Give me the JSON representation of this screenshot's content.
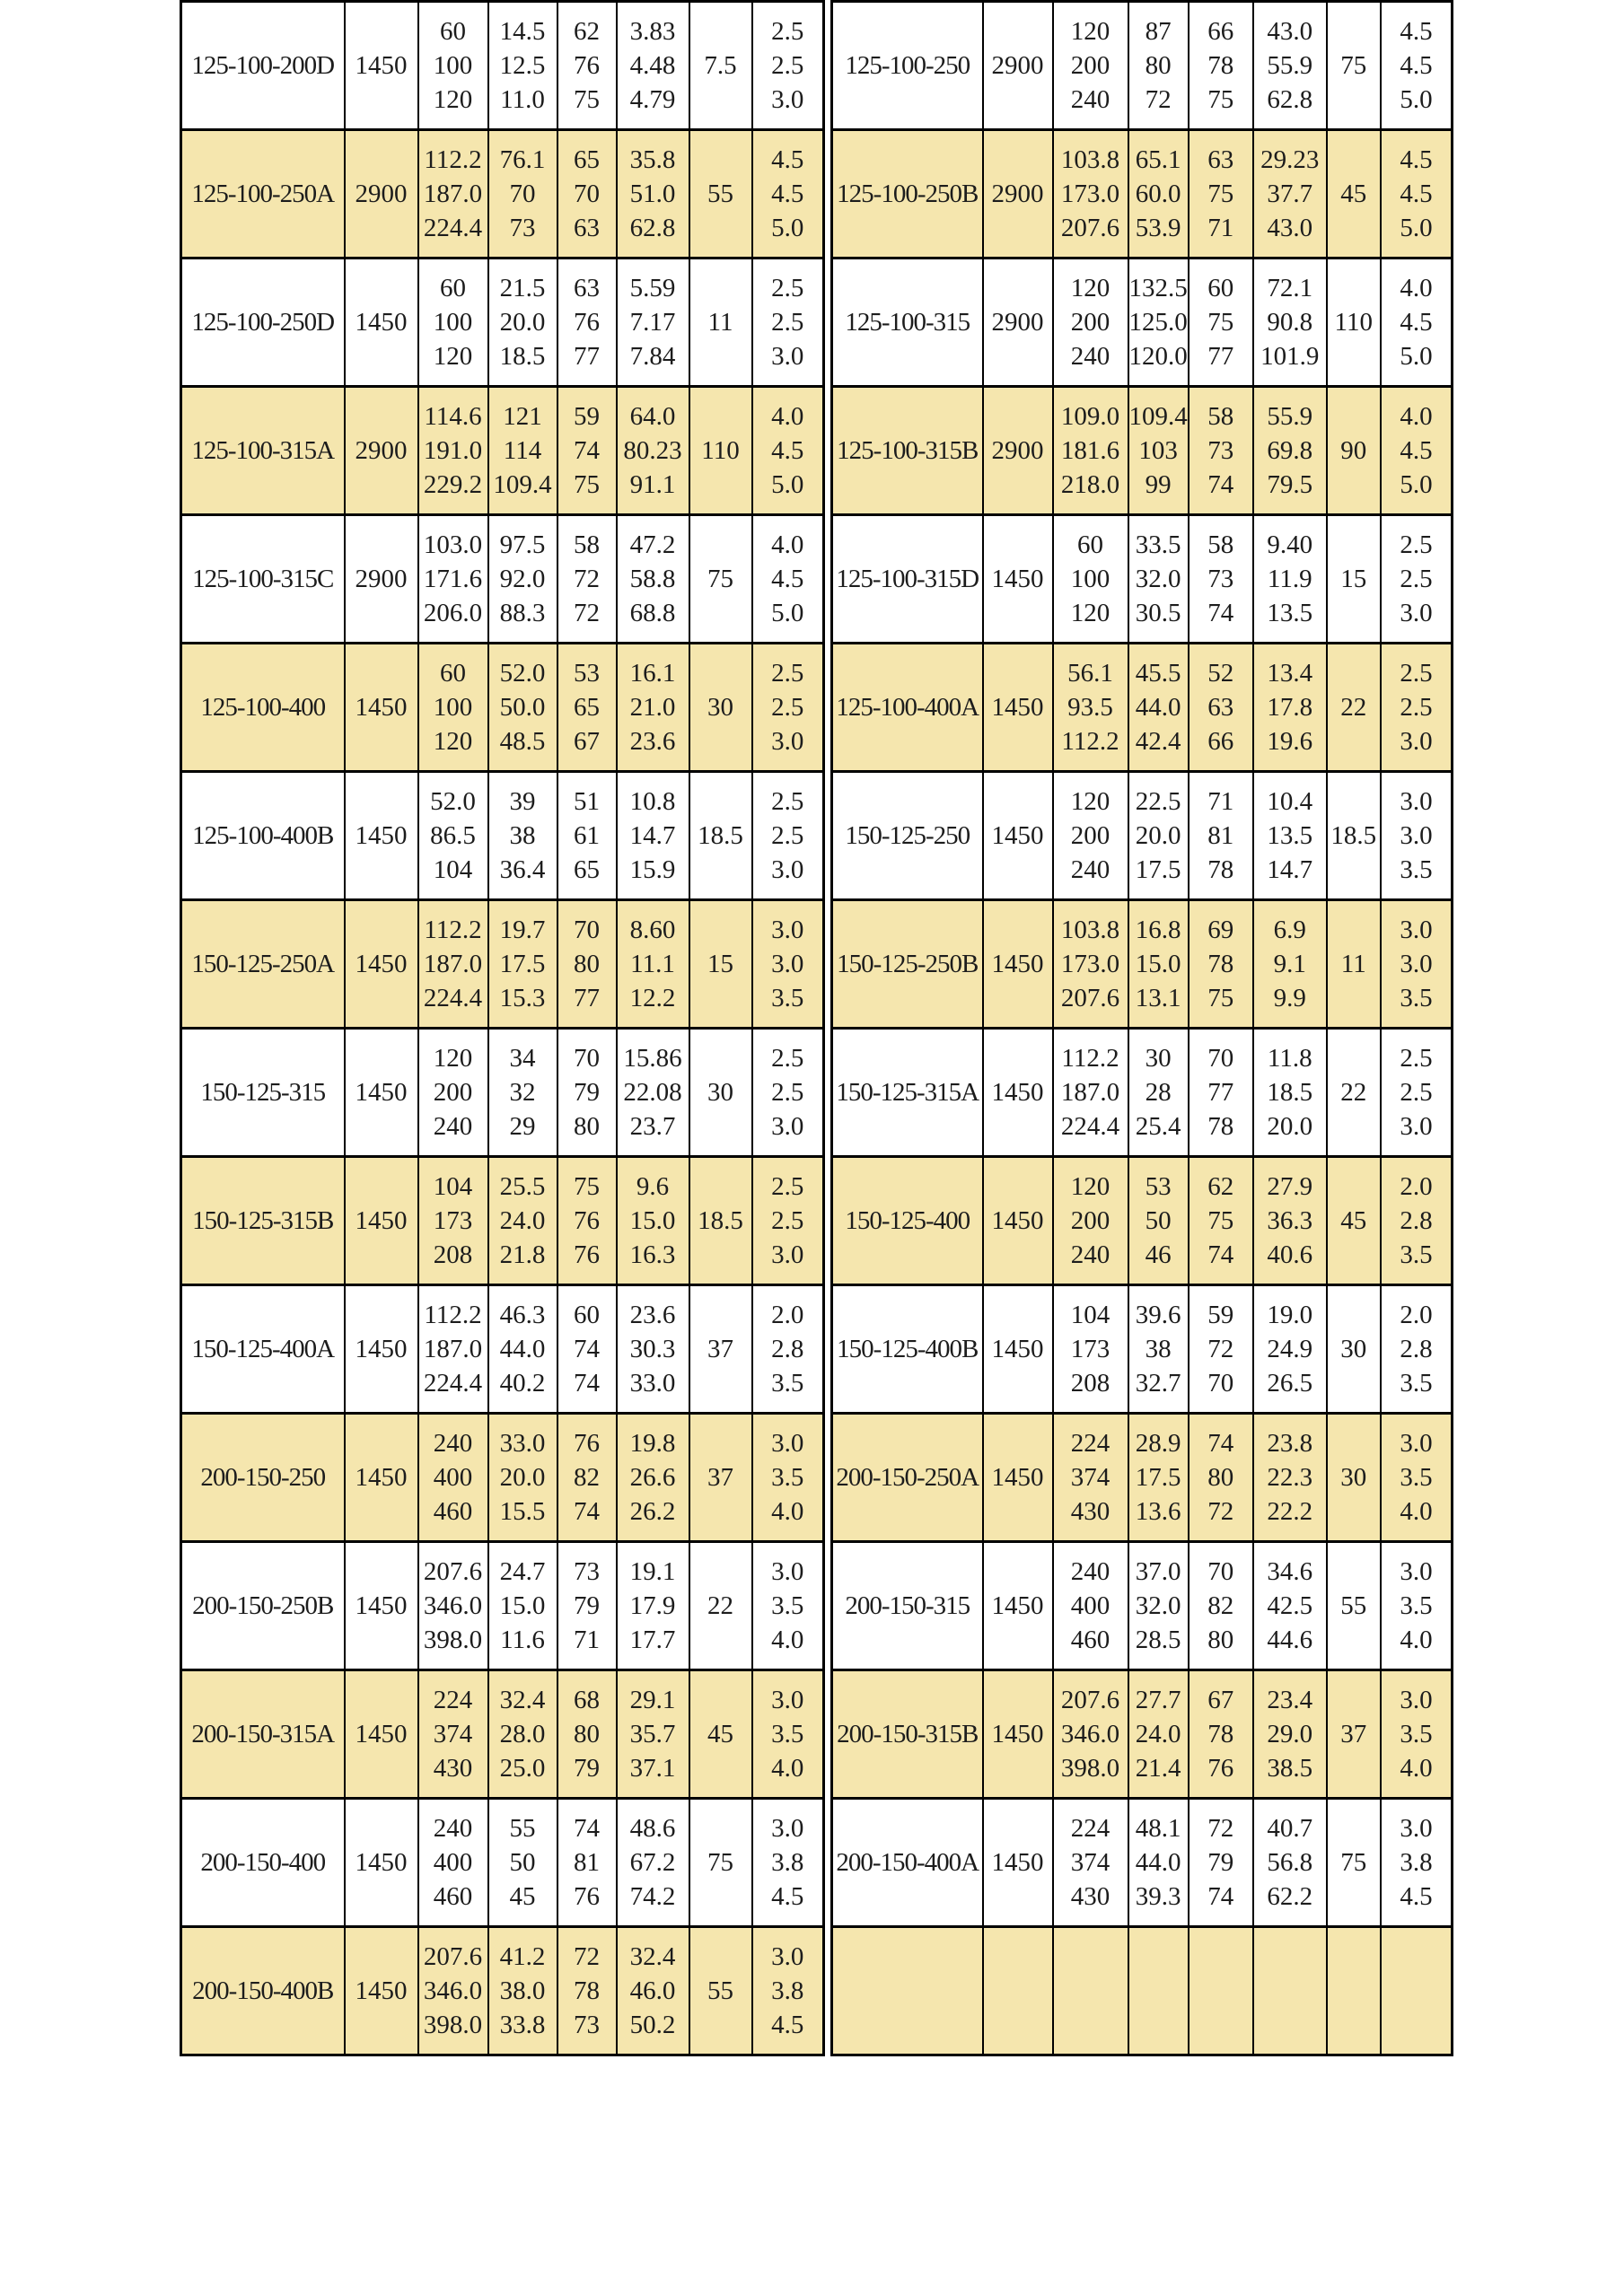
{
  "colors": {
    "stripe": "#f5e6ae",
    "grid": "#000000",
    "text": "#1c1c1c",
    "page_background": "#ffffff"
  },
  "table": {
    "rows": [
      {
        "shade": "white",
        "left": {
          "model": "125-100-200D",
          "speed": "1450",
          "flow": [
            "60",
            "100",
            "120"
          ],
          "head": [
            "14.5",
            "12.5",
            "11.0"
          ],
          "eff": [
            "62",
            "76",
            "75"
          ],
          "power": [
            "3.83",
            "4.48",
            "4.79"
          ],
          "rated": "7.5",
          "npsh": [
            "2.5",
            "2.5",
            "3.0"
          ]
        },
        "right": {
          "model": "125-100-250",
          "speed": "2900",
          "flow": [
            "120",
            "200",
            "240"
          ],
          "head": [
            "87",
            "80",
            "72"
          ],
          "eff": [
            "66",
            "78",
            "75"
          ],
          "power": [
            "43.0",
            "55.9",
            "62.8"
          ],
          "rated": "75",
          "npsh": [
            "4.5",
            "4.5",
            "5.0"
          ]
        }
      },
      {
        "shade": "cream",
        "left": {
          "model": "125-100-250A",
          "speed": "2900",
          "flow": [
            "112.2",
            "187.0",
            "224.4"
          ],
          "head": [
            "76.1",
            "70",
            "73"
          ],
          "eff": [
            "65",
            "70",
            "63"
          ],
          "power": [
            "35.8",
            "51.0",
            "62.8"
          ],
          "rated": "55",
          "npsh": [
            "4.5",
            "4.5",
            "5.0"
          ]
        },
        "right": {
          "model": "125-100-250B",
          "speed": "2900",
          "flow": [
            "103.8",
            "173.0",
            "207.6"
          ],
          "head": [
            "65.1",
            "60.0",
            "53.9"
          ],
          "eff": [
            "63",
            "75",
            "71"
          ],
          "power": [
            "29.23",
            "37.7",
            "43.0"
          ],
          "rated": "45",
          "npsh": [
            "4.5",
            "4.5",
            "5.0"
          ]
        }
      },
      {
        "shade": "white",
        "left": {
          "model": "125-100-250D",
          "speed": "1450",
          "flow": [
            "60",
            "100",
            "120"
          ],
          "head": [
            "21.5",
            "20.0",
            "18.5"
          ],
          "eff": [
            "63",
            "76",
            "77"
          ],
          "power": [
            "5.59",
            "7.17",
            "7.84"
          ],
          "rated": "11",
          "npsh": [
            "2.5",
            "2.5",
            "3.0"
          ]
        },
        "right": {
          "model": "125-100-315",
          "speed": "2900",
          "flow": [
            "120",
            "200",
            "240"
          ],
          "head": [
            "132.5",
            "125.0",
            "120.0"
          ],
          "eff": [
            "60",
            "75",
            "77"
          ],
          "power": [
            "72.1",
            "90.8",
            "101.9"
          ],
          "rated": "110",
          "npsh": [
            "4.0",
            "4.5",
            "5.0"
          ]
        }
      },
      {
        "shade": "cream",
        "left": {
          "model": "125-100-315A",
          "speed": "2900",
          "flow": [
            "114.6",
            "191.0",
            "229.2"
          ],
          "head": [
            "121",
            "114",
            "109.4"
          ],
          "eff": [
            "59",
            "74",
            "75"
          ],
          "power": [
            "64.0",
            "80.23",
            "91.1"
          ],
          "rated": "110",
          "npsh": [
            "4.0",
            "4.5",
            "5.0"
          ]
        },
        "right": {
          "model": "125-100-315B",
          "speed": "2900",
          "flow": [
            "109.0",
            "181.6",
            "218.0"
          ],
          "head": [
            "109.4",
            "103",
            "99"
          ],
          "eff": [
            "58",
            "73",
            "74"
          ],
          "power": [
            "55.9",
            "69.8",
            "79.5"
          ],
          "rated": "90",
          "npsh": [
            "4.0",
            "4.5",
            "5.0"
          ]
        }
      },
      {
        "shade": "white",
        "left": {
          "model": "125-100-315C",
          "speed": "2900",
          "flow": [
            "103.0",
            "171.6",
            "206.0"
          ],
          "head": [
            "97.5",
            "92.0",
            "88.3"
          ],
          "eff": [
            "58",
            "72",
            "72"
          ],
          "power": [
            "47.2",
            "58.8",
            "68.8"
          ],
          "rated": "75",
          "npsh": [
            "4.0",
            "4.5",
            "5.0"
          ]
        },
        "right": {
          "model": "125-100-315D",
          "speed": "1450",
          "flow": [
            "60",
            "100",
            "120"
          ],
          "head": [
            "33.5",
            "32.0",
            "30.5"
          ],
          "eff": [
            "58",
            "73",
            "74"
          ],
          "power": [
            "9.40",
            "11.9",
            "13.5"
          ],
          "rated": "15",
          "npsh": [
            "2.5",
            "2.5",
            "3.0"
          ]
        }
      },
      {
        "shade": "cream",
        "left": {
          "model": "125-100-400",
          "speed": "1450",
          "flow": [
            "60",
            "100",
            "120"
          ],
          "head": [
            "52.0",
            "50.0",
            "48.5"
          ],
          "eff": [
            "53",
            "65",
            "67"
          ],
          "power": [
            "16.1",
            "21.0",
            "23.6"
          ],
          "rated": "30",
          "npsh": [
            "2.5",
            "2.5",
            "3.0"
          ]
        },
        "right": {
          "model": "125-100-400A",
          "speed": "1450",
          "flow": [
            "56.1",
            "93.5",
            "112.2"
          ],
          "head": [
            "45.5",
            "44.0",
            "42.4"
          ],
          "eff": [
            "52",
            "63",
            "66"
          ],
          "power": [
            "13.4",
            "17.8",
            "19.6"
          ],
          "rated": "22",
          "npsh": [
            "2.5",
            "2.5",
            "3.0"
          ]
        }
      },
      {
        "shade": "white",
        "left": {
          "model": "125-100-400B",
          "speed": "1450",
          "flow": [
            "52.0",
            "86.5",
            "104"
          ],
          "head": [
            "39",
            "38",
            "36.4"
          ],
          "eff": [
            "51",
            "61",
            "65"
          ],
          "power": [
            "10.8",
            "14.7",
            "15.9"
          ],
          "rated": "18.5",
          "npsh": [
            "2.5",
            "2.5",
            "3.0"
          ]
        },
        "right": {
          "model": "150-125-250",
          "speed": "1450",
          "flow": [
            "120",
            "200",
            "240"
          ],
          "head": [
            "22.5",
            "20.0",
            "17.5"
          ],
          "eff": [
            "71",
            "81",
            "78"
          ],
          "power": [
            "10.4",
            "13.5",
            "14.7"
          ],
          "rated": "18.5",
          "npsh": [
            "3.0",
            "3.0",
            "3.5"
          ]
        }
      },
      {
        "shade": "cream",
        "left": {
          "model": "150-125-250A",
          "speed": "1450",
          "flow": [
            "112.2",
            "187.0",
            "224.4"
          ],
          "head": [
            "19.7",
            "17.5",
            "15.3"
          ],
          "eff": [
            "70",
            "80",
            "77"
          ],
          "power": [
            "8.60",
            "11.1",
            "12.2"
          ],
          "rated": "15",
          "npsh": [
            "3.0",
            "3.0",
            "3.5"
          ]
        },
        "right": {
          "model": "150-125-250B",
          "speed": "1450",
          "flow": [
            "103.8",
            "173.0",
            "207.6"
          ],
          "head": [
            "16.8",
            "15.0",
            "13.1"
          ],
          "eff": [
            "69",
            "78",
            "75"
          ],
          "power": [
            "6.9",
            "9.1",
            "9.9"
          ],
          "rated": "11",
          "npsh": [
            "3.0",
            "3.0",
            "3.5"
          ]
        }
      },
      {
        "shade": "white",
        "left": {
          "model": "150-125-315",
          "speed": "1450",
          "flow": [
            "120",
            "200",
            "240"
          ],
          "head": [
            "34",
            "32",
            "29"
          ],
          "eff": [
            "70",
            "79",
            "80"
          ],
          "power": [
            "15.86",
            "22.08",
            "23.7"
          ],
          "rated": "30",
          "npsh": [
            "2.5",
            "2.5",
            "3.0"
          ]
        },
        "right": {
          "model": "150-125-315A",
          "speed": "1450",
          "flow": [
            "112.2",
            "187.0",
            "224.4"
          ],
          "head": [
            "30",
            "28",
            "25.4"
          ],
          "eff": [
            "70",
            "77",
            "78"
          ],
          "power": [
            "11.8",
            "18.5",
            "20.0"
          ],
          "rated": "22",
          "npsh": [
            "2.5",
            "2.5",
            "3.0"
          ]
        }
      },
      {
        "shade": "cream",
        "left": {
          "model": "150-125-315B",
          "speed": "1450",
          "flow": [
            "104",
            "173",
            "208"
          ],
          "head": [
            "25.5",
            "24.0",
            "21.8"
          ],
          "eff": [
            "75",
            "76",
            "76"
          ],
          "power": [
            "9.6",
            "15.0",
            "16.3"
          ],
          "rated": "18.5",
          "npsh": [
            "2.5",
            "2.5",
            "3.0"
          ]
        },
        "right": {
          "model": "150-125-400",
          "speed": "1450",
          "flow": [
            "120",
            "200",
            "240"
          ],
          "head": [
            "53",
            "50",
            "46"
          ],
          "eff": [
            "62",
            "75",
            "74"
          ],
          "power": [
            "27.9",
            "36.3",
            "40.6"
          ],
          "rated": "45",
          "npsh": [
            "2.0",
            "2.8",
            "3.5"
          ]
        }
      },
      {
        "shade": "white",
        "left": {
          "model": "150-125-400A",
          "speed": "1450",
          "flow": [
            "112.2",
            "187.0",
            "224.4"
          ],
          "head": [
            "46.3",
            "44.0",
            "40.2"
          ],
          "eff": [
            "60",
            "74",
            "74"
          ],
          "power": [
            "23.6",
            "30.3",
            "33.0"
          ],
          "rated": "37",
          "npsh": [
            "2.0",
            "2.8",
            "3.5"
          ]
        },
        "right": {
          "model": "150-125-400B",
          "speed": "1450",
          "flow": [
            "104",
            "173",
            "208"
          ],
          "head": [
            "39.6",
            "38",
            "32.7"
          ],
          "eff": [
            "59",
            "72",
            "70"
          ],
          "power": [
            "19.0",
            "24.9",
            "26.5"
          ],
          "rated": "30",
          "npsh": [
            "2.0",
            "2.8",
            "3.5"
          ]
        }
      },
      {
        "shade": "cream",
        "left": {
          "model": "200-150-250",
          "speed": "1450",
          "flow": [
            "240",
            "400",
            "460"
          ],
          "head": [
            "33.0",
            "20.0",
            "15.5"
          ],
          "eff": [
            "76",
            "82",
            "74"
          ],
          "power": [
            "19.8",
            "26.6",
            "26.2"
          ],
          "rated": "37",
          "npsh": [
            "3.0",
            "3.5",
            "4.0"
          ]
        },
        "right": {
          "model": "200-150-250A",
          "speed": "1450",
          "flow": [
            "224",
            "374",
            "430"
          ],
          "head": [
            "28.9",
            "17.5",
            "13.6"
          ],
          "eff": [
            "74",
            "80",
            "72"
          ],
          "power": [
            "23.8",
            "22.3",
            "22.2"
          ],
          "rated": "30",
          "npsh": [
            "3.0",
            "3.5",
            "4.0"
          ]
        }
      },
      {
        "shade": "white",
        "left": {
          "model": "200-150-250B",
          "speed": "1450",
          "flow": [
            "207.6",
            "346.0",
            "398.0"
          ],
          "head": [
            "24.7",
            "15.0",
            "11.6"
          ],
          "eff": [
            "73",
            "79",
            "71"
          ],
          "power": [
            "19.1",
            "17.9",
            "17.7"
          ],
          "rated": "22",
          "npsh": [
            "3.0",
            "3.5",
            "4.0"
          ]
        },
        "right": {
          "model": "200-150-315",
          "speed": "1450",
          "flow": [
            "240",
            "400",
            "460"
          ],
          "head": [
            "37.0",
            "32.0",
            "28.5"
          ],
          "eff": [
            "70",
            "82",
            "80"
          ],
          "power": [
            "34.6",
            "42.5",
            "44.6"
          ],
          "rated": "55",
          "npsh": [
            "3.0",
            "3.5",
            "4.0"
          ]
        }
      },
      {
        "shade": "cream",
        "left": {
          "model": "200-150-315A",
          "speed": "1450",
          "flow": [
            "224",
            "374",
            "430"
          ],
          "head": [
            "32.4",
            "28.0",
            "25.0"
          ],
          "eff": [
            "68",
            "80",
            "79"
          ],
          "power": [
            "29.1",
            "35.7",
            "37.1"
          ],
          "rated": "45",
          "npsh": [
            "3.0",
            "3.5",
            "4.0"
          ]
        },
        "right": {
          "model": "200-150-315B",
          "speed": "1450",
          "flow": [
            "207.6",
            "346.0",
            "398.0"
          ],
          "head": [
            "27.7",
            "24.0",
            "21.4"
          ],
          "eff": [
            "67",
            "78",
            "76"
          ],
          "power": [
            "23.4",
            "29.0",
            "38.5"
          ],
          "rated": "37",
          "npsh": [
            "3.0",
            "3.5",
            "4.0"
          ]
        }
      },
      {
        "shade": "white",
        "left": {
          "model": "200-150-400",
          "speed": "1450",
          "flow": [
            "240",
            "400",
            "460"
          ],
          "head": [
            "55",
            "50",
            "45"
          ],
          "eff": [
            "74",
            "81",
            "76"
          ],
          "power": [
            "48.6",
            "67.2",
            "74.2"
          ],
          "rated": "75",
          "npsh": [
            "3.0",
            "3.8",
            "4.5"
          ]
        },
        "right": {
          "model": "200-150-400A",
          "speed": "1450",
          "flow": [
            "224",
            "374",
            "430"
          ],
          "head": [
            "48.1",
            "44.0",
            "39.3"
          ],
          "eff": [
            "72",
            "79",
            "74"
          ],
          "power": [
            "40.7",
            "56.8",
            "62.2"
          ],
          "rated": "75",
          "npsh": [
            "3.0",
            "3.8",
            "4.5"
          ]
        }
      },
      {
        "shade": "cream",
        "left": {
          "model": "200-150-400B",
          "speed": "1450",
          "flow": [
            "207.6",
            "346.0",
            "398.0"
          ],
          "head": [
            "41.2",
            "38.0",
            "33.8"
          ],
          "eff": [
            "72",
            "78",
            "73"
          ],
          "power": [
            "32.4",
            "46.0",
            "50.2"
          ],
          "rated": "55",
          "npsh": [
            "3.0",
            "3.8",
            "4.5"
          ]
        },
        "right": null
      }
    ]
  }
}
